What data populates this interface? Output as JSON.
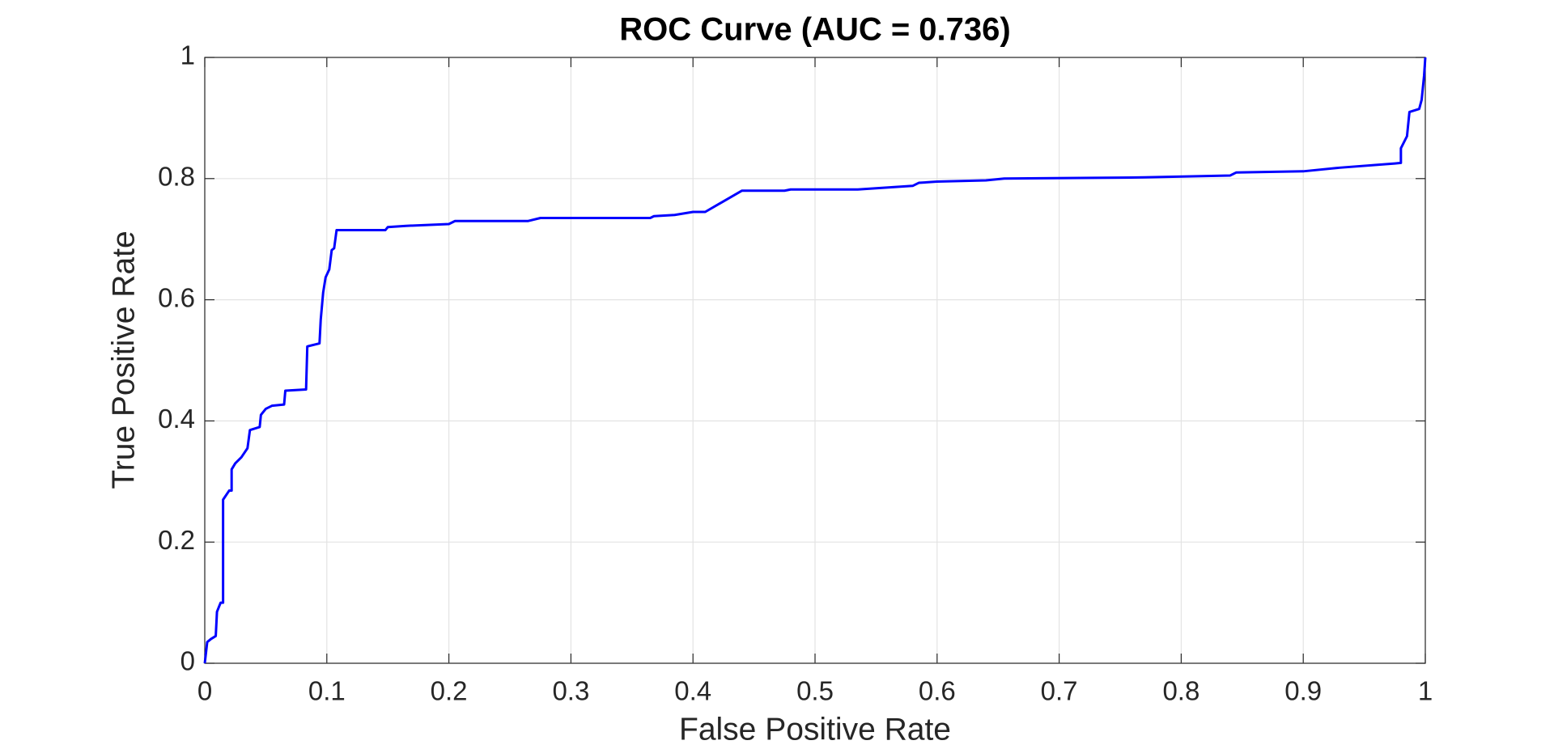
{
  "chart_data": {
    "type": "line",
    "title": "ROC Curve (AUC = 0.736)",
    "x_label": "False Positive Rate",
    "y_label": "True Positive Rate",
    "series": [
      {
        "color": "#0000ff",
        "x": [
          0,
          0.002,
          0.005,
          0.009,
          0.01,
          0.013,
          0.015,
          0.015,
          0.02,
          0.022,
          0.022,
          0.025,
          0.03,
          0.035,
          0.037,
          0.045,
          0.046,
          0.05,
          0.055,
          0.065,
          0.066,
          0.083,
          0.084,
          0.094,
          0.095,
          0.097,
          0.099,
          0.102,
          0.104,
          0.106,
          0.108,
          0.148,
          0.15,
          0.165,
          0.2,
          0.205,
          0.265,
          0.275,
          0.365,
          0.368,
          0.385,
          0.4,
          0.41,
          0.44,
          0.475,
          0.48,
          0.535,
          0.58,
          0.585,
          0.6,
          0.64,
          0.655,
          0.77,
          0.84,
          0.845,
          0.9,
          0.93,
          0.975,
          0.98,
          0.98,
          0.985,
          0.987,
          0.995,
          0.997,
          0.999,
          1
        ],
        "values": [
          0,
          0.035,
          0.04,
          0.045,
          0.085,
          0.1,
          0.1,
          0.27,
          0.285,
          0.285,
          0.32,
          0.33,
          0.34,
          0.355,
          0.385,
          0.39,
          0.41,
          0.42,
          0.425,
          0.427,
          0.45,
          0.452,
          0.523,
          0.528,
          0.567,
          0.612,
          0.637,
          0.65,
          0.682,
          0.685,
          0.715,
          0.715,
          0.72,
          0.722,
          0.725,
          0.73,
          0.73,
          0.735,
          0.735,
          0.738,
          0.74,
          0.745,
          0.745,
          0.78,
          0.78,
          0.782,
          0.782,
          0.788,
          0.793,
          0.795,
          0.797,
          0.8,
          0.802,
          0.805,
          0.81,
          0.812,
          0.818,
          0.825,
          0.826,
          0.85,
          0.87,
          0.91,
          0.915,
          0.93,
          0.97,
          1
        ]
      }
    ],
    "xlim": [
      0,
      1
    ],
    "ylim": [
      0,
      1
    ],
    "xticks": [
      0,
      0.1,
      0.2,
      0.3,
      0.4,
      0.5,
      0.6,
      0.7,
      0.8,
      0.9,
      1
    ],
    "yticks": [
      0,
      0.2,
      0.4,
      0.6,
      0.8,
      1
    ],
    "grid": true
  }
}
